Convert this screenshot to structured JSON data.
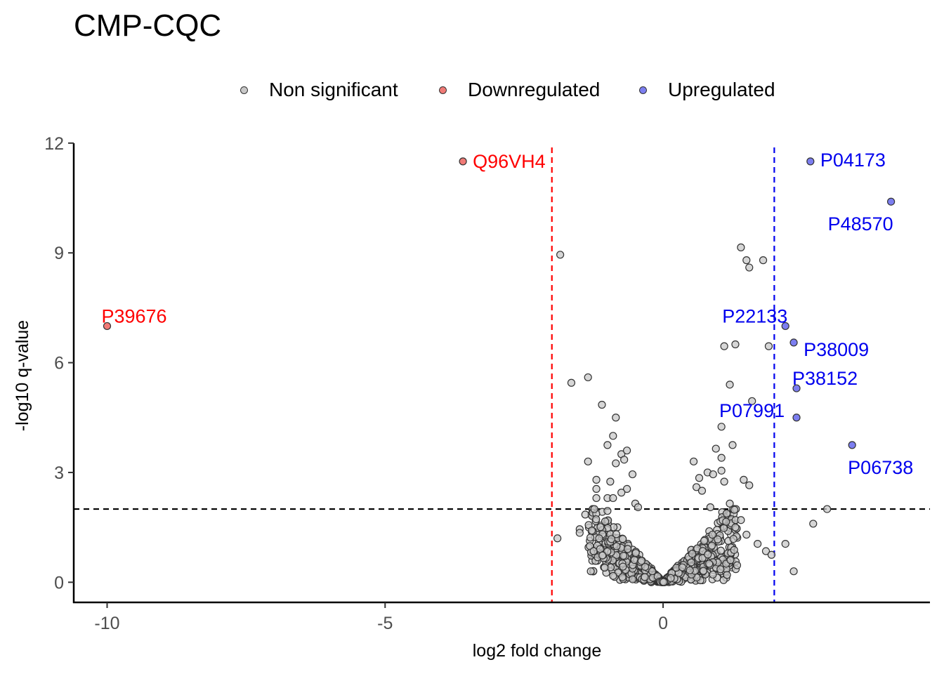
{
  "chart_data": {
    "type": "scatter",
    "title": "CMP-CQC",
    "xlabel": "log2 fold change",
    "ylabel": "-log10 q-value",
    "xlim": [
      -10.6,
      4.8
    ],
    "ylim": [
      -0.55,
      12.15
    ],
    "x_ticks": [
      -10,
      -5,
      0
    ],
    "y_ticks": [
      0,
      3,
      6,
      9,
      12
    ],
    "grid": false,
    "legend_position": "top",
    "thresholds": {
      "fold_change_low": -2,
      "fold_change_high": 2,
      "q_value_line": 2
    },
    "colors": {
      "non_significant": "#c8c8c8",
      "downregulated": "#f07a76",
      "upregulated": "#7c7ef0",
      "down_label": "#ff0000",
      "up_label": "#0000ee",
      "point_stroke": "#333333"
    },
    "legend": [
      {
        "key": "non_significant",
        "label": "Non significant"
      },
      {
        "key": "downregulated",
        "label": "Downregulated"
      },
      {
        "key": "upregulated",
        "label": "Upregulated"
      }
    ],
    "series": [
      {
        "name": "Downregulated",
        "points": [
          {
            "x": -10.0,
            "y": 7.0,
            "label": "P39676"
          },
          {
            "x": -3.6,
            "y": 11.5,
            "label": "Q96VH4"
          }
        ]
      },
      {
        "name": "Upregulated",
        "points": [
          {
            "x": 2.65,
            "y": 11.5,
            "label": "P04173"
          },
          {
            "x": 4.1,
            "y": 10.4,
            "label": "P48570"
          },
          {
            "x": 2.2,
            "y": 7.0,
            "label": "P22133"
          },
          {
            "x": 2.35,
            "y": 6.55,
            "label": "P38009"
          },
          {
            "x": 2.4,
            "y": 5.3,
            "label": "P38152"
          },
          {
            "x": 2.4,
            "y": 4.5,
            "label": "P07991"
          },
          {
            "x": 3.4,
            "y": 3.75,
            "label": "P06738"
          }
        ]
      },
      {
        "name": "Non significant",
        "points": [
          {
            "x": -1.85,
            "y": 8.95
          },
          {
            "x": -1.65,
            "y": 5.45
          },
          {
            "x": -1.35,
            "y": 5.6
          },
          {
            "x": -1.1,
            "y": 4.85
          },
          {
            "x": -0.85,
            "y": 4.5
          },
          {
            "x": -0.9,
            "y": 4.0
          },
          {
            "x": -1.0,
            "y": 3.75
          },
          {
            "x": -0.75,
            "y": 3.5
          },
          {
            "x": -0.65,
            "y": 3.6
          },
          {
            "x": -0.7,
            "y": 3.35
          },
          {
            "x": -1.35,
            "y": 3.3
          },
          {
            "x": -0.85,
            "y": 3.25
          },
          {
            "x": -1.2,
            "y": 2.8
          },
          {
            "x": -0.95,
            "y": 2.75
          },
          {
            "x": -1.2,
            "y": 2.55
          },
          {
            "x": -0.55,
            "y": 2.95
          },
          {
            "x": -0.65,
            "y": 2.55
          },
          {
            "x": -0.75,
            "y": 2.45
          },
          {
            "x": -1.0,
            "y": 2.3
          },
          {
            "x": -0.9,
            "y": 2.3
          },
          {
            "x": -1.2,
            "y": 2.3
          },
          {
            "x": -0.5,
            "y": 2.15
          },
          {
            "x": -0.45,
            "y": 2.05
          },
          {
            "x": -1.4,
            "y": 1.85
          },
          {
            "x": -1.0,
            "y": 1.95
          },
          {
            "x": -1.5,
            "y": 1.45
          },
          {
            "x": -1.9,
            "y": 1.2
          },
          {
            "x": -1.5,
            "y": 1.35
          },
          {
            "x": -1.15,
            "y": 1.2
          },
          {
            "x": -1.25,
            "y": 0.85
          },
          {
            "x": -1.3,
            "y": 0.3
          },
          {
            "x": -1.05,
            "y": 0.4
          },
          {
            "x": 1.4,
            "y": 9.15
          },
          {
            "x": 1.5,
            "y": 8.8
          },
          {
            "x": 1.55,
            "y": 8.6
          },
          {
            "x": 1.8,
            "y": 8.8
          },
          {
            "x": 1.3,
            "y": 6.5
          },
          {
            "x": 1.1,
            "y": 6.45
          },
          {
            "x": 1.9,
            "y": 6.45
          },
          {
            "x": 1.2,
            "y": 5.4
          },
          {
            "x": 1.6,
            "y": 4.95
          },
          {
            "x": 1.05,
            "y": 4.25
          },
          {
            "x": 1.25,
            "y": 3.75
          },
          {
            "x": 0.95,
            "y": 3.65
          },
          {
            "x": 1.05,
            "y": 3.4
          },
          {
            "x": 0.55,
            "y": 3.3
          },
          {
            "x": 1.05,
            "y": 3.05
          },
          {
            "x": 0.8,
            "y": 3.0
          },
          {
            "x": 0.9,
            "y": 2.95
          },
          {
            "x": 1.1,
            "y": 2.75
          },
          {
            "x": 1.45,
            "y": 2.8
          },
          {
            "x": 1.55,
            "y": 2.65
          },
          {
            "x": 0.65,
            "y": 2.85
          },
          {
            "x": 0.6,
            "y": 2.6
          },
          {
            "x": 0.7,
            "y": 2.5
          },
          {
            "x": 1.2,
            "y": 2.15
          },
          {
            "x": 0.85,
            "y": 2.05
          },
          {
            "x": 2.95,
            "y": 2.0
          },
          {
            "x": 2.7,
            "y": 1.6
          },
          {
            "x": 1.4,
            "y": 1.7
          },
          {
            "x": 1.3,
            "y": 1.5
          },
          {
            "x": 1.7,
            "y": 1.05
          },
          {
            "x": 2.2,
            "y": 1.05
          },
          {
            "x": 1.85,
            "y": 0.85
          },
          {
            "x": 1.95,
            "y": 0.75
          },
          {
            "x": 2.35,
            "y": 0.3
          },
          {
            "x": 1.5,
            "y": 1.3
          },
          {
            "x": 1.15,
            "y": 0.2
          }
        ]
      }
    ]
  }
}
